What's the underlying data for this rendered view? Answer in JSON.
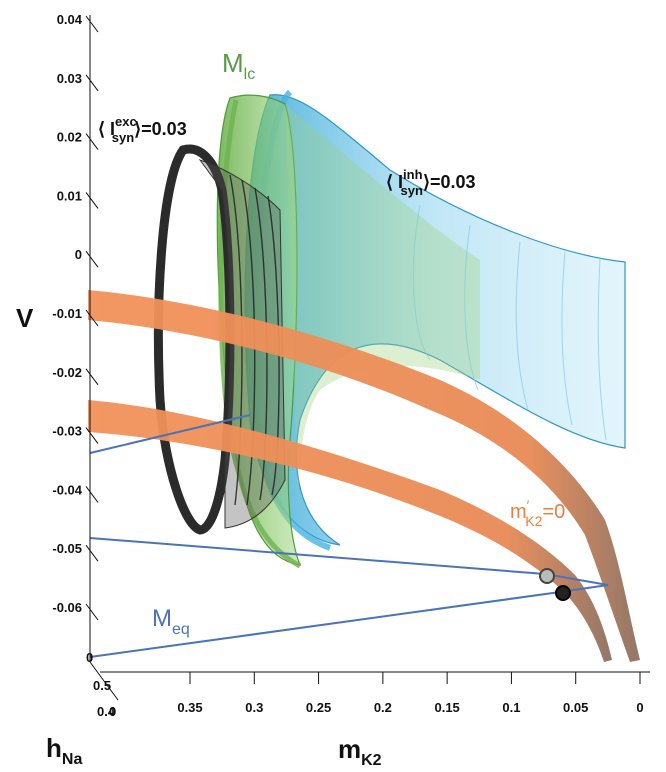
{
  "axes": {
    "v_label": "V",
    "v_ticks": [
      "0.04",
      "0.03",
      "0.02",
      "0.01",
      "0",
      "-0.01",
      "-0.02",
      "-0.03",
      "-0.04",
      "-0.05",
      "-0.06"
    ],
    "mk2_label": "m",
    "mk2_sub": "K2",
    "mk2_ticks": [
      "0.35",
      "0.3",
      "0.25",
      "0.2",
      "0.15",
      "0.1",
      "0.05",
      "0"
    ],
    "hna_label": "h",
    "hna_sub": "Na",
    "hna_ticks": [
      "0.5",
      "0",
      "0.4",
      "0"
    ]
  },
  "labels": {
    "mlc_main": "M",
    "mlc_sub": "lc",
    "meq_main": "M",
    "meq_sub": "eq",
    "exc_open": "⟨ I",
    "exc_sup": "exc",
    "exc_sub": "syn",
    "exc_close": "⟩=0.03",
    "inh_open": "⟨ I",
    "inh_sup": "inh",
    "inh_sub": "syn",
    "inh_close": "⟩=0.03",
    "null_main": "m",
    "null_prime": "′",
    "null_sub": "K2",
    "null_eq": "=0"
  },
  "colors": {
    "green": "#6fb24f",
    "blue": "#4fb6e0",
    "dark": "#2b2b2b",
    "orange": "#f08a4b",
    "meq_line": "#4a74b8",
    "mlc_text": "#5a9a46",
    "meq_text": "#4a74b8",
    "null_text": "#ef7c3c"
  }
}
